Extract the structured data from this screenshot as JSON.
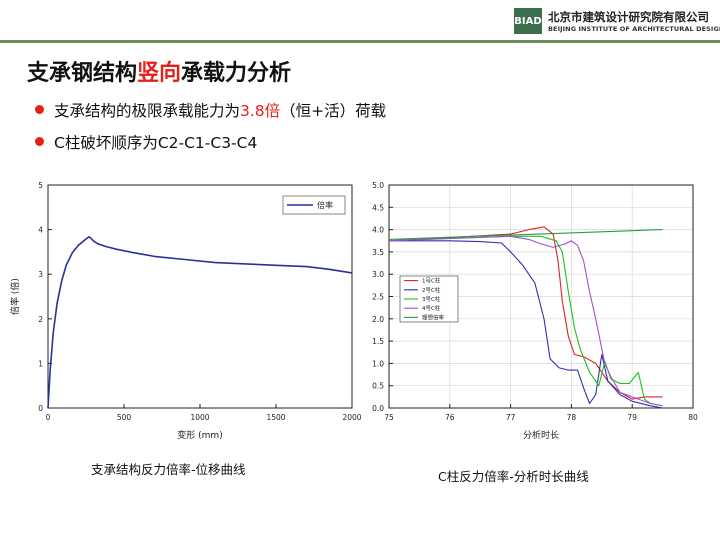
{
  "header": {
    "logo_abbr": "BIAD",
    "logo_cn": "北京市建筑设计研究院有限公司",
    "logo_en": "BEIJING INSTITUTE OF ARCHITECTURAL DESIGN",
    "accent_color": "#6b8f5a"
  },
  "title": {
    "part1": "支承钢结构",
    "highlight": "竖向",
    "part2": "承载力分析",
    "highlight_color": "#e32119"
  },
  "bullets": [
    {
      "pre": "支承结构的极限承载能力为",
      "highlight": "3.8倍",
      "post": "（恒+活）荷载"
    },
    {
      "pre": "C柱破坏顺序为C2-C1-C3-C4"
    }
  ],
  "captions": {
    "left": "支承结构反力倍率-位移曲线",
    "right": "C柱反力倍率-分析时长曲线"
  },
  "chart_data": [
    {
      "type": "line",
      "xlabel": "变形 (mm)",
      "ylabel": "倍率 (倍)",
      "xlim": [
        0,
        2000
      ],
      "ylim": [
        0,
        5
      ],
      "xticks": [
        0,
        500,
        1000,
        1500,
        2000
      ],
      "yticks": [
        0,
        1,
        2,
        3,
        4,
        5
      ],
      "legend_position": "top-right",
      "grid": false,
      "series": [
        {
          "name": "倍率",
          "color": "#2b2f9c",
          "x": [
            0,
            15,
            35,
            60,
            90,
            120,
            160,
            200,
            240,
            270,
            285,
            300,
            330,
            380,
            450,
            550,
            700,
            900,
            1100,
            1300,
            1500,
            1700,
            1850,
            2000
          ],
          "y": [
            0,
            0.9,
            1.7,
            2.35,
            2.85,
            3.2,
            3.48,
            3.65,
            3.76,
            3.84,
            3.8,
            3.74,
            3.68,
            3.62,
            3.56,
            3.49,
            3.4,
            3.33,
            3.26,
            3.23,
            3.2,
            3.17,
            3.11,
            3.03
          ]
        }
      ]
    },
    {
      "type": "line",
      "xlabel": "分析时长",
      "ylabel": "",
      "xlim": [
        75,
        80
      ],
      "ylim": [
        0,
        5
      ],
      "xticks": [
        75,
        76,
        77,
        78,
        79,
        80
      ],
      "yticks": [
        0.0,
        0.5,
        1.0,
        1.5,
        2.0,
        2.5,
        3.0,
        3.5,
        4.0,
        4.5,
        5.0
      ],
      "legend_position": "middle-left",
      "grid": true,
      "series": [
        {
          "name": "1号C柱",
          "color": "#e02020",
          "x": [
            75,
            76,
            77,
            77.3,
            77.55,
            77.7,
            77.78,
            77.85,
            77.95,
            78.05,
            78.2,
            78.4,
            78.6,
            78.8,
            79.0,
            79.2,
            79.5
          ],
          "y": [
            3.75,
            3.82,
            3.9,
            4.0,
            4.06,
            3.9,
            3.3,
            2.4,
            1.6,
            1.2,
            1.15,
            1.0,
            0.6,
            0.35,
            0.2,
            0.25,
            0.25
          ]
        },
        {
          "name": "2号C柱",
          "color": "#3030b0",
          "x": [
            75,
            76,
            76.5,
            76.85,
            77.0,
            77.2,
            77.4,
            77.55,
            77.65,
            77.8,
            77.95,
            78.1,
            78.2,
            78.3,
            78.4,
            78.5,
            78.6,
            78.8,
            79.0,
            79.3,
            79.5
          ],
          "y": [
            3.75,
            3.75,
            3.73,
            3.7,
            3.5,
            3.2,
            2.8,
            2.0,
            1.1,
            0.9,
            0.85,
            0.85,
            0.45,
            0.1,
            0.3,
            1.2,
            0.6,
            0.3,
            0.15,
            0.05,
            0.0
          ]
        },
        {
          "name": "3号C柱",
          "color": "#20c020",
          "x": [
            75,
            76,
            77,
            77.5,
            77.75,
            77.85,
            77.95,
            78.05,
            78.15,
            78.3,
            78.45,
            78.55,
            78.65,
            78.8,
            78.95,
            79.1,
            79.2,
            79.3,
            79.5
          ],
          "y": [
            3.75,
            3.8,
            3.85,
            3.85,
            3.75,
            3.5,
            2.6,
            1.8,
            1.3,
            0.8,
            0.5,
            1.05,
            0.65,
            0.55,
            0.55,
            0.8,
            0.2,
            0.1,
            0.05
          ]
        },
        {
          "name": "4号C柱",
          "color": "#a050d0",
          "x": [
            75,
            76,
            77,
            77.3,
            77.5,
            77.7,
            77.9,
            78.0,
            78.1,
            78.2,
            78.3,
            78.4,
            78.55,
            78.65,
            78.8,
            79.0,
            79.3,
            79.5
          ],
          "y": [
            3.75,
            3.8,
            3.85,
            3.78,
            3.68,
            3.6,
            3.68,
            3.75,
            3.65,
            3.3,
            2.6,
            2.0,
            1.0,
            0.7,
            0.35,
            0.25,
            0.1,
            0.05
          ]
        },
        {
          "name": "理想倍率",
          "color": "#2a9a4a",
          "x": [
            75,
            79.5
          ],
          "y": [
            3.78,
            4.0
          ]
        }
      ]
    }
  ]
}
